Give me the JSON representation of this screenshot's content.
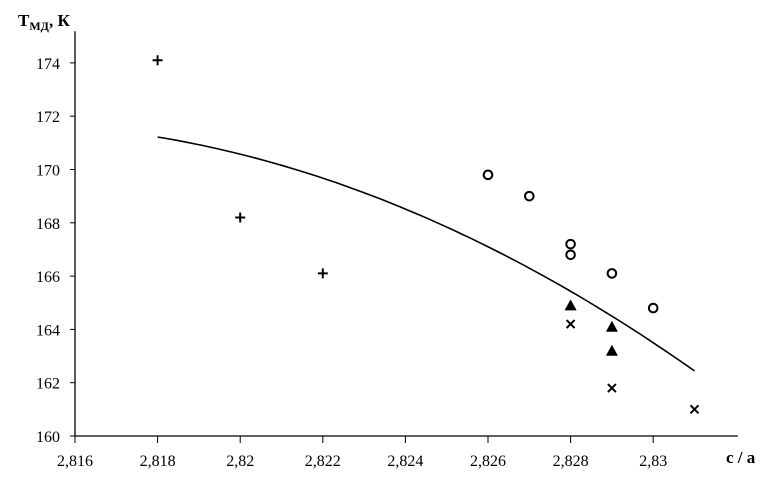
{
  "chart_data": {
    "type": "scatter",
    "title": "",
    "ylabel": "T",
    "ylabel_sub": "МД",
    "ylabel_unit": ", К",
    "xlabel": "c / a",
    "xlim": [
      2.816,
      2.832
    ],
    "ylim": [
      160,
      175
    ],
    "grid": false,
    "xticks": [
      "2,816",
      "2,818",
      "2,82",
      "2,822",
      "2,824",
      "2,826",
      "2,828",
      "2,83"
    ],
    "xtick_values": [
      2.816,
      2.818,
      2.82,
      2.822,
      2.824,
      2.826,
      2.828,
      2.83
    ],
    "yticks": [
      "160",
      "162",
      "164",
      "166",
      "168",
      "170",
      "172",
      "174"
    ],
    "ytick_values": [
      160,
      162,
      164,
      166,
      168,
      170,
      172,
      174
    ],
    "series": [
      {
        "marker": "plus",
        "points": [
          [
            2.818,
            174.1
          ],
          [
            2.82,
            168.2
          ],
          [
            2.822,
            166.1
          ]
        ]
      },
      {
        "marker": "circle",
        "points": [
          [
            2.826,
            169.8
          ],
          [
            2.827,
            169.0
          ],
          [
            2.828,
            167.2
          ],
          [
            2.828,
            166.8
          ],
          [
            2.829,
            166.1
          ],
          [
            2.83,
            164.8
          ]
        ]
      },
      {
        "marker": "triangle",
        "points": [
          [
            2.828,
            164.9
          ],
          [
            2.829,
            164.1
          ],
          [
            2.829,
            163.2
          ]
        ]
      },
      {
        "marker": "cross",
        "points": [
          [
            2.828,
            164.2
          ],
          [
            2.829,
            161.8
          ],
          [
            2.831,
            161.0
          ]
        ]
      }
    ],
    "trend": {
      "type": "polynomial",
      "x_range": [
        2.818,
        2.831
      ],
      "points": [
        [
          2.818,
          171.2
        ],
        [
          2.82,
          170.6
        ],
        [
          2.822,
          169.7
        ],
        [
          2.824,
          168.6
        ],
        [
          2.826,
          167.1
        ],
        [
          2.828,
          165.4
        ],
        [
          2.83,
          163.4
        ],
        [
          2.831,
          162.4
        ]
      ]
    },
    "color": "#000000"
  }
}
